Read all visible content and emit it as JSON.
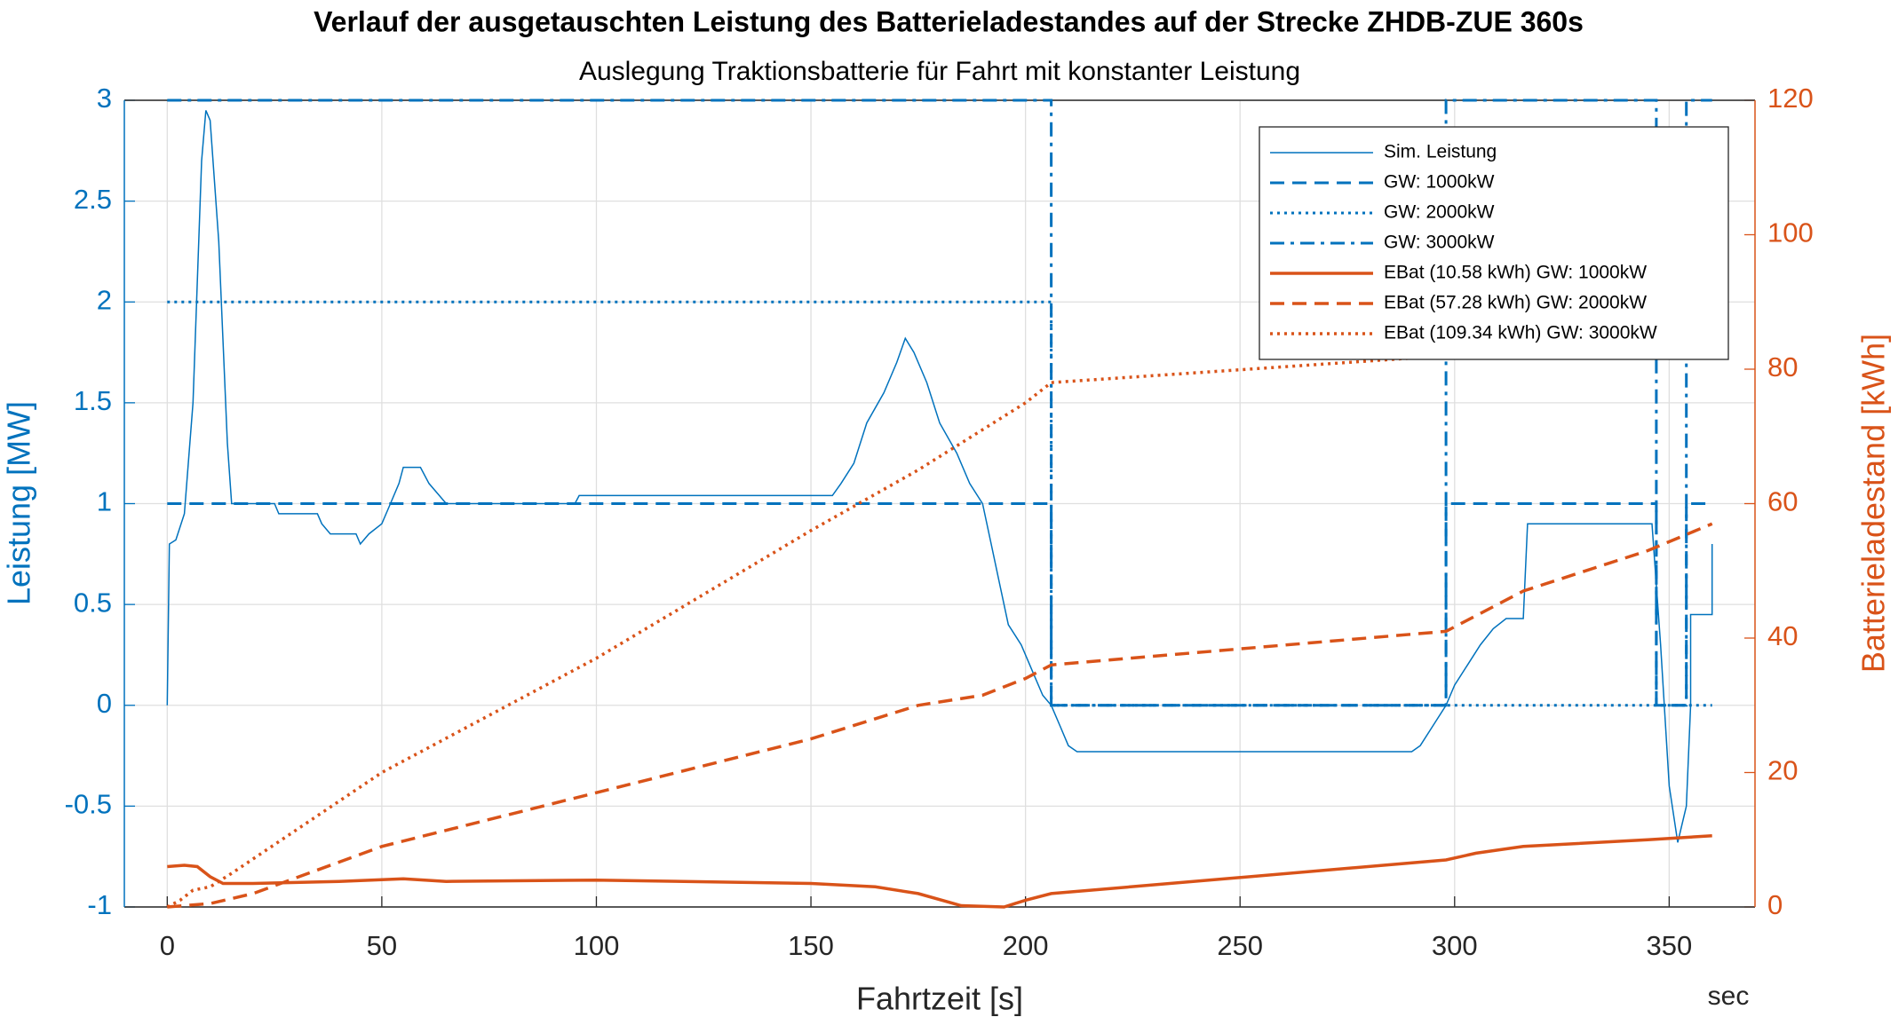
{
  "chart_data": {
    "type": "line",
    "title": "Verlauf der ausgetauschten Leistung des Batterieladestandes auf der Strecke ZHDB-ZUE 360s",
    "subtitle": "Auslegung Traktionsbatterie für Fahrt mit konstanter Leistung",
    "x_label": "Fahrtzeit [s]",
    "x_unit_label": "sec",
    "y_label": "Leistung [MW]",
    "y2_label": "Batterieladestand [kWh]",
    "xlim": [
      -10,
      370
    ],
    "xticks": [
      0,
      50,
      100,
      150,
      200,
      250,
      300,
      350
    ],
    "ylim": [
      -1,
      3
    ],
    "yticks": [
      -1,
      -0.5,
      0,
      0.5,
      1,
      1.5,
      2,
      2.5,
      3
    ],
    "y2lim": [
      0,
      120
    ],
    "y2ticks": [
      0,
      20,
      40,
      60,
      80,
      100,
      120
    ],
    "grid": true,
    "legend": "upper right",
    "y_color": "#0072bd",
    "y2_color": "#d95319",
    "series": [
      {
        "name": "Sim. Leistung",
        "color": "#0072bd",
        "linestyle": "solid",
        "width": 1.5,
        "x": [
          0,
          0.5,
          2,
          4,
          6,
          8,
          9,
          10,
          12,
          14,
          15,
          25,
          26,
          35,
          36,
          38,
          44,
          45,
          47,
          50,
          52,
          54,
          55,
          59,
          61,
          63,
          65,
          95,
          96,
          155,
          157,
          160,
          163,
          167,
          170,
          172,
          174,
          177,
          180,
          184,
          187,
          190,
          192,
          194,
          196,
          199,
          202,
          204,
          206,
          208,
          210,
          212,
          290,
          292,
          295,
          298,
          300,
          303,
          306,
          309,
          312,
          316,
          317,
          346,
          348,
          350,
          352,
          354,
          355,
          355,
          360,
          360
        ],
        "values": [
          0,
          0.8,
          0.82,
          0.95,
          1.5,
          2.7,
          2.95,
          2.9,
          2.3,
          1.3,
          1.0,
          1.0,
          0.95,
          0.95,
          0.9,
          0.85,
          0.85,
          0.8,
          0.85,
          0.9,
          1.0,
          1.1,
          1.18,
          1.18,
          1.1,
          1.05,
          1.0,
          1.0,
          1.04,
          1.04,
          1.1,
          1.2,
          1.4,
          1.55,
          1.7,
          1.82,
          1.75,
          1.6,
          1.4,
          1.25,
          1.1,
          1.0,
          0.8,
          0.6,
          0.4,
          0.3,
          0.15,
          0.05,
          0,
          -0.1,
          -0.2,
          -0.23,
          -0.23,
          -0.2,
          -0.1,
          0,
          0.1,
          0.2,
          0.3,
          0.38,
          0.43,
          0.43,
          0.9,
          0.9,
          0.3,
          -0.4,
          -0.68,
          -0.5,
          0,
          0.45,
          0.45,
          0.8
        ]
      },
      {
        "name": "GW: 1000kW",
        "color": "#0072bd",
        "linestyle": "dashed",
        "width": 3,
        "x": [
          0,
          206,
          206,
          298,
          298,
          347,
          347,
          354,
          354,
          360
        ],
        "values": [
          1,
          1,
          0,
          0,
          1,
          1,
          0,
          0,
          1,
          1
        ]
      },
      {
        "name": "GW: 2000kW",
        "color": "#0072bd",
        "linestyle": "dotted",
        "width": 3,
        "x": [
          0,
          206,
          206,
          360
        ],
        "values": [
          2,
          2,
          0,
          0
        ]
      },
      {
        "name": "GW: 3000kW",
        "color": "#0072bd",
        "linestyle": "dashdot",
        "width": 3,
        "x": [
          0,
          206,
          206,
          298,
          298,
          347,
          347,
          354,
          354,
          360
        ],
        "values": [
          3,
          3,
          0,
          0,
          3,
          3,
          0,
          0,
          3,
          3
        ]
      },
      {
        "name": "EBat (10.58 kWh) GW: 1000kW",
        "color": "#d95319",
        "linestyle": "solid",
        "width": 3.5,
        "axis": "y2",
        "x": [
          0,
          4,
          7,
          10,
          13,
          20,
          40,
          55,
          65,
          100,
          150,
          165,
          175,
          185,
          195,
          200,
          206,
          298,
          305,
          316,
          345,
          360
        ],
        "values": [
          6,
          6.2,
          6,
          4.5,
          3.5,
          3.5,
          3.8,
          4.2,
          3.8,
          4,
          3.5,
          3,
          2,
          0.2,
          0,
          1,
          2,
          7,
          8,
          9,
          10,
          10.6
        ]
      },
      {
        "name": "EBat (57.28 kWh) GW: 2000kW",
        "color": "#d95319",
        "linestyle": "dashed",
        "width": 3.5,
        "axis": "y2",
        "x": [
          0,
          10,
          20,
          50,
          100,
          150,
          165,
          175,
          190,
          200,
          206,
          298,
          316,
          345,
          360
        ],
        "values": [
          0,
          0.5,
          2,
          9,
          17,
          25,
          28,
          30,
          31.5,
          34,
          36,
          41,
          47,
          53,
          57
        ]
      },
      {
        "name": "EBat (109.34 kWh) GW: 3000kW",
        "color": "#d95319",
        "linestyle": "dotted",
        "width": 3.5,
        "axis": "y2",
        "x": [
          0,
          3,
          6,
          10,
          15,
          50,
          100,
          150,
          175,
          190,
          200,
          206,
          298,
          316,
          345,
          360
        ],
        "values": [
          0,
          1,
          2.5,
          3,
          5,
          20,
          37,
          56,
          65,
          71,
          75,
          78,
          82,
          88,
          103,
          109
        ]
      }
    ]
  }
}
